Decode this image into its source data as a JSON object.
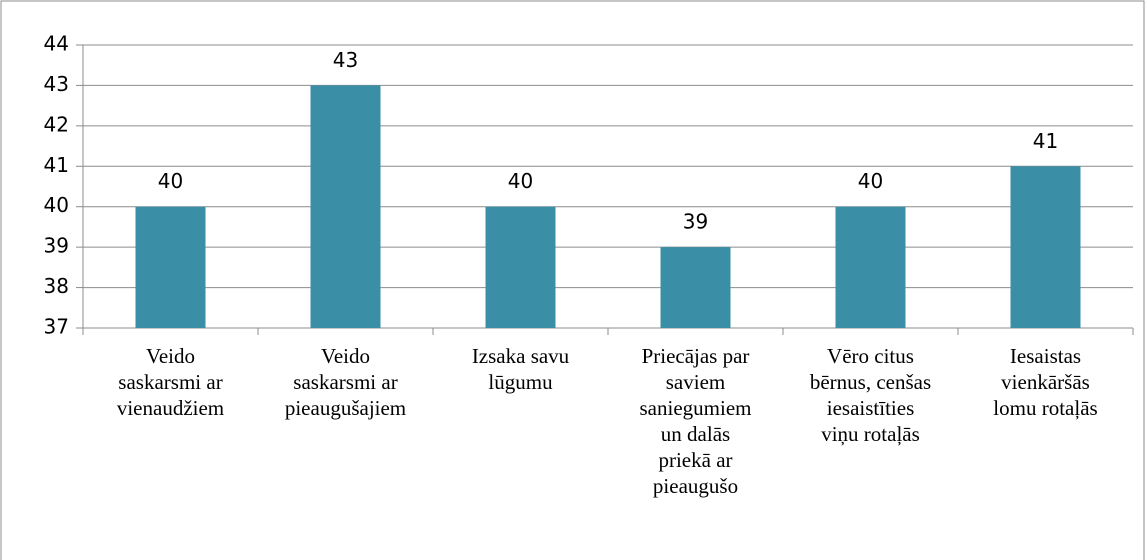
{
  "chart_data": {
    "type": "bar",
    "categories": [
      "Veido\nsaskarsmi ar\nvienaudžiem",
      "Veido\nsaskarsmi ar\npieaugušajiem",
      "Izsaka savu\nlūgumu",
      "Priecājas par\nsaviem\nsaniegumiem\nun dalās\npriekā ar\npieaugušo",
      "Vēro citus\nbērnus, cenšas\niesaistīties\nviņu rotaļās",
      "Iesaistas\nvienkāršās\nlomu rotaļās"
    ],
    "values": [
      40,
      43,
      40,
      39,
      40,
      41
    ],
    "color": "#3a8fa7",
    "ylim": [
      37,
      44
    ],
    "yticks": [
      37,
      38,
      39,
      40,
      41,
      42,
      43,
      44
    ],
    "grid": true
  }
}
